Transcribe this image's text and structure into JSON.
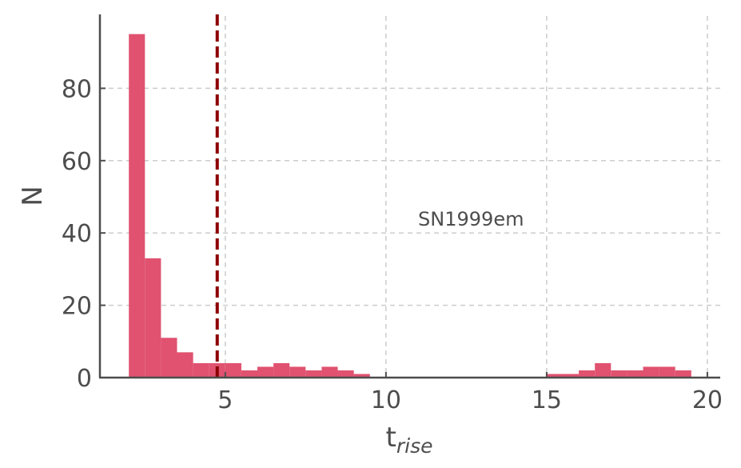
{
  "chart_data": {
    "type": "bar",
    "subtype": "histogram",
    "bin_width": 0.5,
    "bin_starts": [
      2.0,
      2.5,
      3.0,
      3.5,
      4.0,
      4.5,
      5.0,
      5.5,
      6.0,
      6.5,
      7.0,
      7.5,
      8.0,
      8.5,
      9.0,
      9.5,
      10.0,
      10.5,
      11.0,
      11.5,
      12.0,
      12.5,
      13.0,
      13.5,
      14.0,
      14.5,
      15.0,
      15.5,
      16.0,
      16.5,
      17.0,
      17.5,
      18.0,
      18.5,
      19.0
    ],
    "values": [
      95,
      33,
      11,
      7,
      4,
      4,
      4,
      2,
      3,
      4,
      3,
      2,
      3,
      2,
      1,
      0,
      0,
      0,
      0,
      0,
      0,
      0,
      0,
      0,
      0,
      0,
      1,
      1,
      2,
      4,
      2,
      2,
      3,
      3,
      2
    ],
    "bar_color": "#e05270",
    "xlabel": "t",
    "xlabel_subscript": "rise",
    "ylabel": "N",
    "xlim": [
      1.1,
      20.4
    ],
    "ylim": [
      0,
      100
    ],
    "xticks": [
      5,
      10,
      15,
      20
    ],
    "yticks": [
      0,
      20,
      40,
      60,
      80
    ],
    "xtick_labels": [
      "5",
      "10",
      "15",
      "20"
    ],
    "ytick_labels": [
      "0",
      "20",
      "40",
      "60",
      "80"
    ],
    "grid": true,
    "vline": {
      "x": 4.75,
      "color": "#8b0000",
      "style": "dashed"
    },
    "annotation": {
      "text": "SN1999em",
      "x": 11.0,
      "y": 42
    }
  }
}
